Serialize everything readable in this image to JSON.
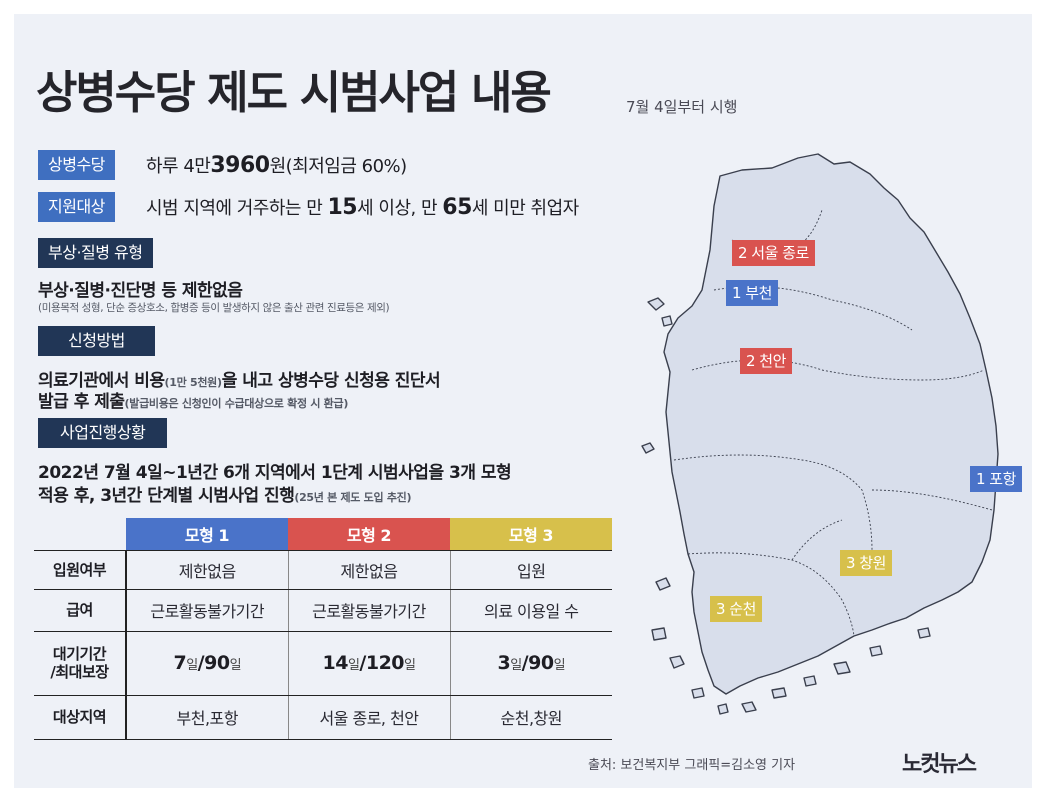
{
  "header": {
    "title": "상병수당 제도 시범사업 내용",
    "subtitle": "7월 4일부터 시행"
  },
  "allowance": {
    "tag": "상병수당",
    "text_prefix": "하루 4만",
    "amount": "3960",
    "text_suffix": "원(최저임금 60%)"
  },
  "eligibility": {
    "tag": "지원대상",
    "part1": "시범 지역에 거주하는 만 ",
    "age_min": "15",
    "part2": "세 이상, 만 ",
    "age_max": "65",
    "part3": "세 미만 취업자"
  },
  "injury": {
    "tag": "부상·질병 유형",
    "line": "부상·질병·진단명 등 제한없음",
    "note": "(미용목적 성형, 단순 증상호소, 합병증 등이 발생하지 않은 출산 관련 진료등은 제외)"
  },
  "application": {
    "tag": "신청방법",
    "line1_a": "의료기관에서 비용",
    "line1_small": "(1만 5천원)",
    "line1_b": "을 내고 상병수당 신청용 진단서",
    "line2_a": "발급 후 제출",
    "line2_small": "(발급비용은 신청인이 수급대상으로 확정 시 환급)"
  },
  "progress": {
    "tag": "사업진행상황",
    "line1": "2022년 7월 4일~1년간 6개 지역에서 1단계 시범사업을 3개 모형",
    "line2_a": "적용 후, 3년간 단계별 시범사업 진행",
    "line2_small": "(25년 본 제도 도입 추진)"
  },
  "table": {
    "headers": [
      "모형 1",
      "모형 2",
      "모형 3"
    ],
    "rows": [
      {
        "label": "입원여부",
        "cells": [
          "제한없음",
          "제한없음",
          "입원"
        ]
      },
      {
        "label": "급여",
        "cells": [
          "근로활동불가기간",
          "근로활동불가기간",
          "의료 이용일 수"
        ]
      },
      {
        "label1": "대기기간",
        "label2": "/최대보장",
        "cells": [
          {
            "wait": "7",
            "wait_unit": "일",
            "sep": "/",
            "max": "90",
            "max_unit": "일"
          },
          {
            "wait": "14",
            "wait_unit": "일",
            "sep": "/",
            "max": "120",
            "max_unit": "일"
          },
          {
            "wait": "3",
            "wait_unit": "일",
            "sep": "/",
            "max": "90",
            "max_unit": "일"
          }
        ]
      },
      {
        "label": "대상지역",
        "cells": [
          "부천,포항",
          "서울 종로, 천안",
          "순천,창원"
        ]
      }
    ]
  },
  "map": {
    "labels": {
      "seoul": "2 서울 종로",
      "bucheon": "1 부천",
      "cheonan": "2 천안",
      "pohang": "1 포항",
      "changwon": "3 창원",
      "suncheon": "3 순천"
    }
  },
  "footer": {
    "credit": "출처: 보건복지부  그래픽=김소영 기자",
    "logo": "노컷뉴스"
  },
  "colors": {
    "model1": "#4a73c9",
    "model2": "#d9534f",
    "model3": "#d7c04b",
    "navy": "#213656",
    "land": "#d8deeb",
    "background": "#eef1f7"
  }
}
